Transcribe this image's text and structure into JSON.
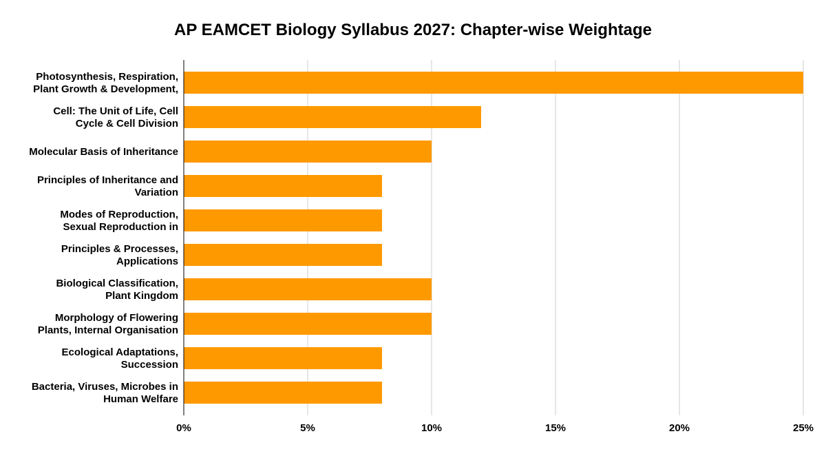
{
  "chart_data": {
    "type": "bar",
    "orientation": "horizontal",
    "title": "AP EAMCET Biology Syllabus 2027: Chapter-wise Weightage",
    "xlabel": "",
    "ylabel": "",
    "categories": [
      [
        "Photosynthesis, Respiration,",
        "Plant Growth & Development,"
      ],
      [
        "Cell: The Unit of Life, Cell",
        "Cycle & Cell Division"
      ],
      [
        "Molecular Basis of Inheritance"
      ],
      [
        "Principles of Inheritance and",
        "Variation"
      ],
      [
        "Modes of Reproduction,",
        "Sexual Reproduction in"
      ],
      [
        "Principles & Processes,",
        "Applications"
      ],
      [
        "Biological Classification,",
        "Plant Kingdom"
      ],
      [
        "Morphology of Flowering",
        "Plants, Internal Organisation"
      ],
      [
        "Ecological Adaptations,",
        "Succession"
      ],
      [
        "Bacteria, Viruses, Microbes in",
        "Human Welfare"
      ]
    ],
    "values": [
      25,
      12,
      10,
      8,
      8,
      8,
      10,
      10,
      8,
      8
    ],
    "xlim": [
      0,
      25
    ],
    "ticks": [
      "0%",
      "5%",
      "10%",
      "15%",
      "20%",
      "25%"
    ],
    "grid": true,
    "legend": "none",
    "bar_color": "#FF9900",
    "grid_color": "#CCCCCC",
    "axis_color": "#000000"
  }
}
